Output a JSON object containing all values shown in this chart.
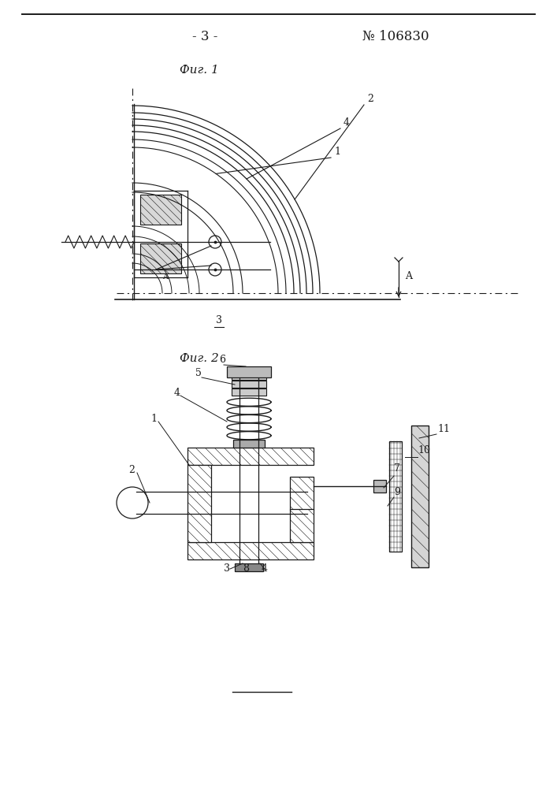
{
  "page_number": "- 3 -",
  "patent_number": "№ 106830",
  "fig1_label": "Фиг. 1",
  "fig2_label": "Фиг. 2",
  "bg_color": "#ffffff",
  "lc": "#1a1a1a"
}
